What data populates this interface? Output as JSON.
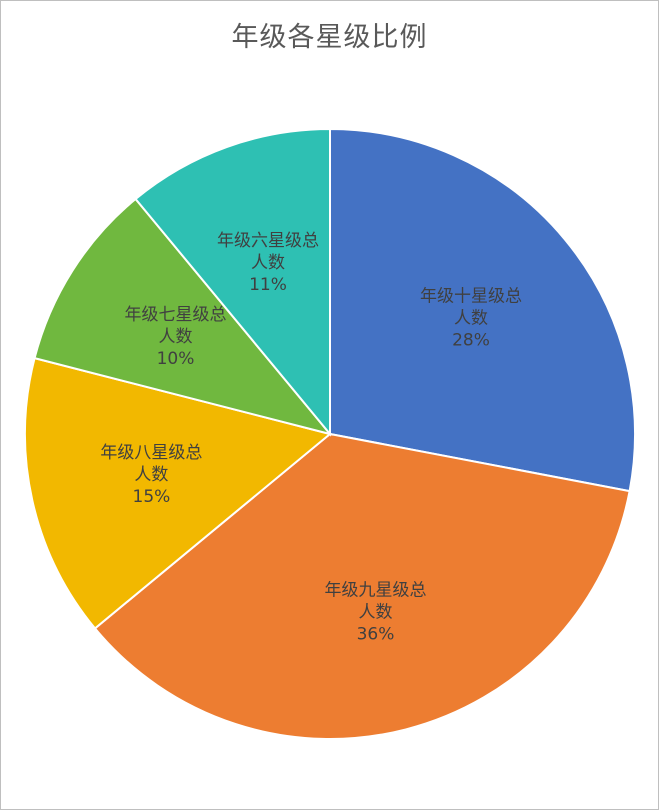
{
  "chart_data": {
    "type": "pie",
    "title": "年级各星级比例",
    "slices": [
      {
        "name": "年级十星级总人数",
        "line1": "年级十星级总",
        "line2": "人数",
        "value": 28,
        "value_label": "28%",
        "color": "#4472C4"
      },
      {
        "name": "年级九星级总人数",
        "line1": "年级九星级总",
        "line2": "人数",
        "value": 36,
        "value_label": "36%",
        "color": "#ED7D31"
      },
      {
        "name": "年级八星级总人数",
        "line1": "年级八星级总",
        "line2": "人数",
        "value": 15,
        "value_label": "15%",
        "color": "#F2B800"
      },
      {
        "name": "年级七星级总人数",
        "line1": "年级七星级总",
        "line2": "人数",
        "value": 10,
        "value_label": "10%",
        "color": "#70B83F"
      },
      {
        "name": "年级六星级总人数",
        "line1": "年级六星级总",
        "line2": "人数",
        "value": 11,
        "value_label": "11%",
        "color": "#2EC0B3"
      }
    ]
  }
}
